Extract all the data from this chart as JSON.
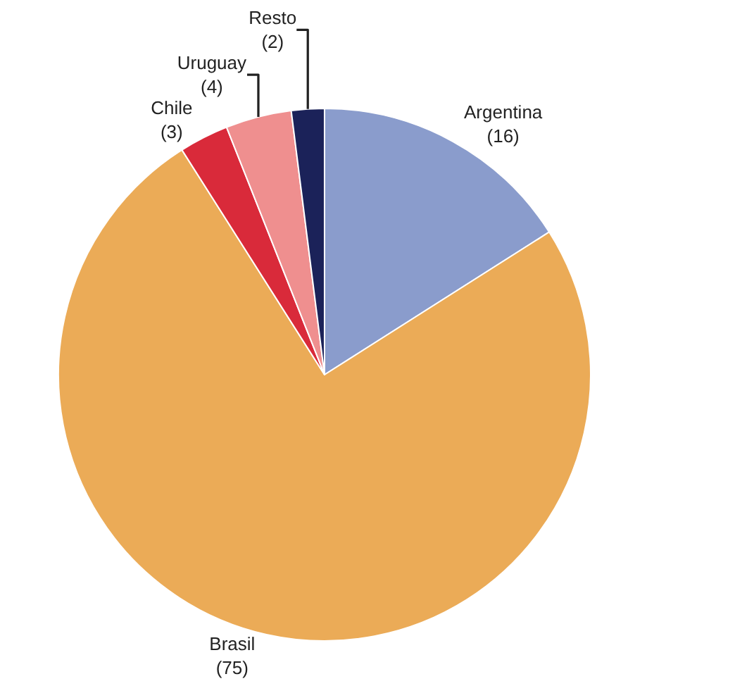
{
  "chart_data": {
    "type": "pie",
    "categories": [
      "Argentina",
      "Brasil",
      "Chile",
      "Uruguay",
      "Resto"
    ],
    "values": [
      16,
      75,
      3,
      4,
      2
    ],
    "colors": [
      "#8a9ccc",
      "#ebab57",
      "#d92a3a",
      "#ef8f8f",
      "#1b2259"
    ],
    "value_labels": [
      "(16)",
      "(75)",
      "(3)",
      "(4)",
      "(2)"
    ],
    "legend": false
  }
}
